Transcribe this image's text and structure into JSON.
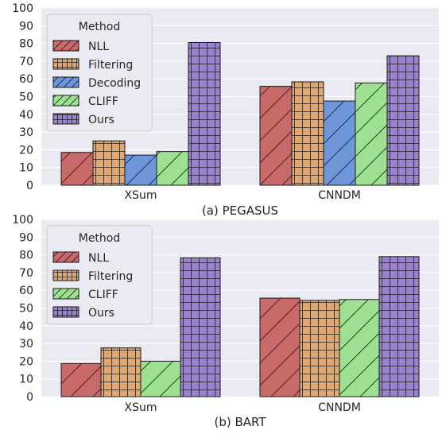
{
  "colors": {
    "background": "#eaeaf2",
    "grid": "#ffffff",
    "edge": "#1a1a1a",
    "text": "#262626",
    "legend_face": "#eaeaf2",
    "legend_edge": "#cccccc"
  },
  "chart_data": [
    {
      "type": "bar",
      "caption": "(a) PEGASUS",
      "categories": [
        "XSum",
        "CNNDM"
      ],
      "ylim": [
        0,
        100
      ],
      "yticks": [
        0,
        10,
        20,
        30,
        40,
        50,
        60,
        70,
        80,
        90,
        100
      ],
      "grid": true,
      "legend": {
        "title": "Method",
        "position": "top-left"
      },
      "series": [
        {
          "name": "NLL",
          "values": [
            18.5,
            55.8
          ],
          "color": "#c86a6a",
          "hatch": "diag"
        },
        {
          "name": "Filtering",
          "values": [
            25.0,
            58.3
          ],
          "color": "#e5a76b",
          "hatch": "grid"
        },
        {
          "name": "Decoding",
          "values": [
            17.0,
            47.5
          ],
          "color": "#6f96d9",
          "hatch": "diag"
        },
        {
          "name": "CLIFF",
          "values": [
            19.0,
            57.7
          ],
          "color": "#9ee092",
          "hatch": "diag"
        },
        {
          "name": "Ours",
          "values": [
            80.5,
            73.0
          ],
          "color": "#9c7fd6",
          "hatch": "grid"
        }
      ]
    },
    {
      "type": "bar",
      "caption": "(b) BART",
      "categories": [
        "XSum",
        "CNNDM"
      ],
      "ylim": [
        0,
        100
      ],
      "yticks": [
        0,
        10,
        20,
        30,
        40,
        50,
        60,
        70,
        80,
        90,
        100
      ],
      "grid": true,
      "legend": {
        "title": "Method",
        "position": "top-left"
      },
      "series": [
        {
          "name": "NLL",
          "values": [
            18.7,
            55.6
          ],
          "color": "#c86a6a",
          "hatch": "diag"
        },
        {
          "name": "Filtering",
          "values": [
            27.5,
            54.3
          ],
          "color": "#e5a76b",
          "hatch": "grid"
        },
        {
          "name": "CLIFF",
          "values": [
            20.0,
            54.8
          ],
          "color": "#9ee092",
          "hatch": "diag"
        },
        {
          "name": "Ours",
          "values": [
            78.3,
            79.0
          ],
          "color": "#9c7fd6",
          "hatch": "grid"
        }
      ]
    }
  ]
}
